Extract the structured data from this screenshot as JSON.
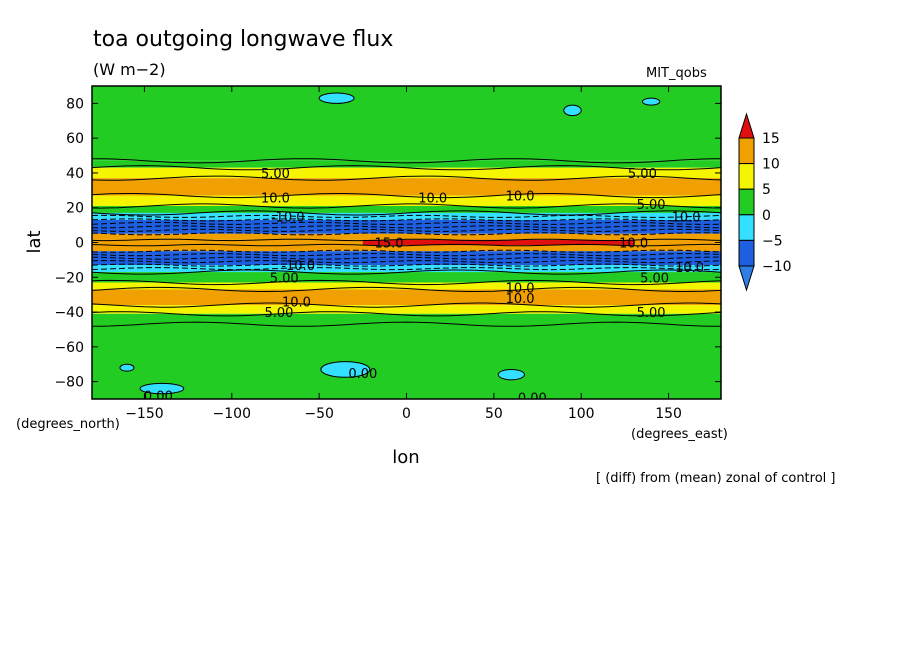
{
  "chart_data": {
    "type": "heatmap",
    "title": "toa outgoing longwave flux",
    "units": "(W m−2)",
    "model_label": "MIT_qobs",
    "xlabel": "lon",
    "ylabel": "lat",
    "x_unit_label": "(degrees_east)",
    "y_unit_label": "(degrees_north)",
    "footnote": "[ (diff) from (mean) zonal of control ]",
    "xlim": [
      -180,
      180
    ],
    "ylim": [
      -90,
      90
    ],
    "x_ticks": [
      -150,
      -100,
      -50,
      0,
      50,
      100,
      150
    ],
    "x_tick_labels": [
      "−150",
      "−100",
      "−50",
      "0",
      "50",
      "100",
      "150"
    ],
    "y_ticks": [
      -80,
      -60,
      -40,
      -20,
      0,
      20,
      40,
      60,
      80
    ],
    "y_tick_labels": [
      "−80",
      "−60",
      "−40",
      "−20",
      "0",
      "20",
      "40",
      "60",
      "80"
    ],
    "colorbar": {
      "levels": [
        -10,
        -5,
        0,
        5,
        10,
        15
      ],
      "labels": [
        "15",
        "10",
        "5",
        "0",
        "−5",
        "−10"
      ],
      "colors": {
        "below_-10": "#2f7fe6",
        "-10_-5": "#1e5fe0",
        "-5_0": "#33e0ff",
        "0_5": "#22cc22",
        "5_10": "#f5f500",
        "10_15": "#f0a000",
        "above_15": "#e01010"
      }
    },
    "contour_labels": [
      {
        "text": "5.00",
        "lon": -75,
        "lat": 40
      },
      {
        "text": "5.00",
        "lon": 135,
        "lat": 40
      },
      {
        "text": "10.0",
        "lon": -75,
        "lat": 26
      },
      {
        "text": "10.0",
        "lon": 15,
        "lat": 26
      },
      {
        "text": "10.0",
        "lon": 65,
        "lat": 27
      },
      {
        "text": "5.00",
        "lon": 140,
        "lat": 22
      },
      {
        "text": "-10.0",
        "lon": -68,
        "lat": 15
      },
      {
        "text": "10.0",
        "lon": 160,
        "lat": 15
      },
      {
        "text": "15.0",
        "lon": -10,
        "lat": 0
      },
      {
        "text": "10.0",
        "lon": 130,
        "lat": 0
      },
      {
        "text": "-10.0",
        "lon": -62,
        "lat": -13
      },
      {
        "text": "10.0",
        "lon": 162,
        "lat": -14
      },
      {
        "text": "5.00",
        "lon": -70,
        "lat": -20
      },
      {
        "text": "5.00",
        "lon": 142,
        "lat": -20
      },
      {
        "text": "10.0",
        "lon": 65,
        "lat": -26
      },
      {
        "text": "10.0",
        "lon": 65,
        "lat": -32
      },
      {
        "text": "10.0",
        "lon": -63,
        "lat": -34
      },
      {
        "text": "5.00",
        "lon": -73,
        "lat": -40
      },
      {
        "text": "5.00",
        "lon": 140,
        "lat": -40
      },
      {
        "text": "0.00",
        "lon": -25,
        "lat": -75
      },
      {
        "text": "0.00",
        "lon": -142,
        "lat": -88
      },
      {
        "text": "0.00",
        "lon": 72,
        "lat": -89
      }
    ]
  }
}
